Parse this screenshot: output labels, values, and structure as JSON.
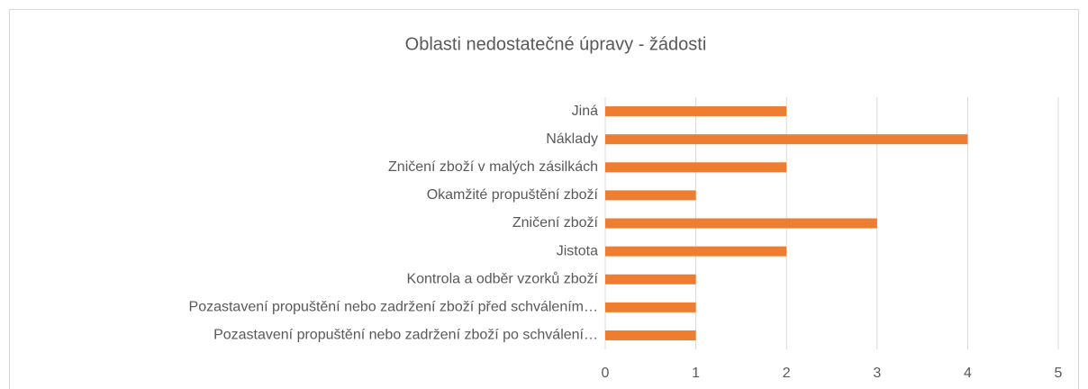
{
  "chart_data": {
    "type": "bar",
    "orientation": "horizontal",
    "title": "Oblasti nedostatečné úpravy - žádosti",
    "categories": [
      "Jiná",
      "Náklady",
      "Zničení zboží v malých zásilkách",
      "Okamžité propuštění zboží",
      "Zničení zboží",
      "Jistota",
      "Kontrola a odběr vzorků zboží",
      "Pozastavení propuštění nebo zadržení zboží před schválením…",
      "Pozastavení propuštění nebo zadržení zboží po schválení…"
    ],
    "values": [
      2,
      4,
      2,
      1,
      3,
      2,
      1,
      1,
      1
    ],
    "color": "#ed7d31",
    "xlim": [
      0,
      5
    ],
    "xticks": [
      0,
      1,
      2,
      3,
      4,
      5
    ],
    "grid": true
  }
}
